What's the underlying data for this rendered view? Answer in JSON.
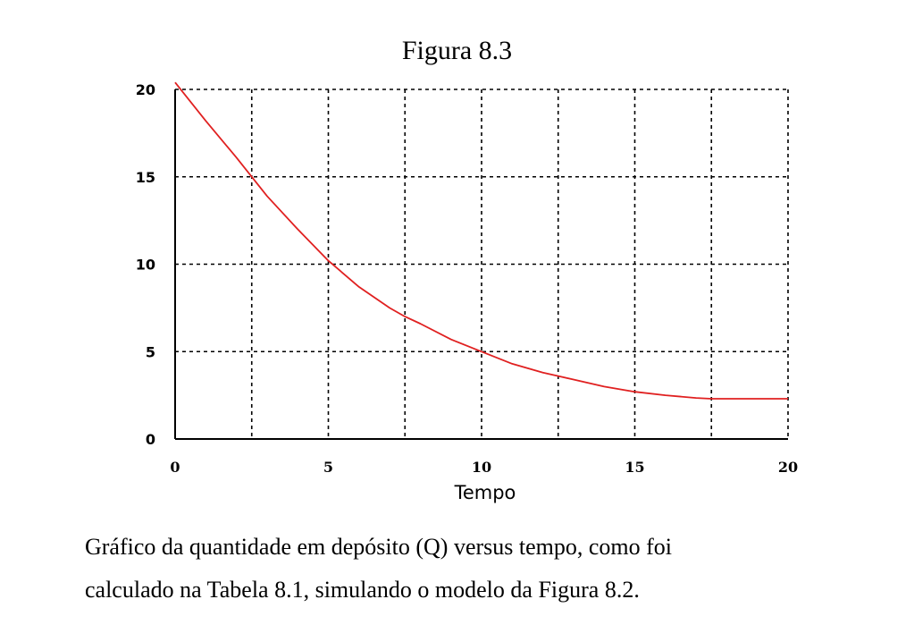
{
  "title": "Figura 8.3",
  "caption": {
    "line1": "Gráfico da quantidade em depósito (Q) versus tempo, como foi",
    "line2": "calculado na Tabela 8.1, simulando o modelo da Figura 8.2."
  },
  "chart_data": {
    "type": "line",
    "title": "Figura 8.3",
    "xlabel": "Tempo",
    "ylabel": "",
    "xlim": [
      0,
      20
    ],
    "ylim": [
      0,
      20
    ],
    "xticks": [
      0,
      5,
      10,
      15,
      20
    ],
    "yticks": [
      0,
      5,
      10,
      15,
      20
    ],
    "grid": true,
    "grid_style": "dashed",
    "colors": {
      "line": "#e02020",
      "grid": "#000000",
      "axis": "#000000"
    },
    "series": [
      {
        "x": [
          0,
          1,
          2,
          2.5,
          3,
          4,
          5,
          6,
          7,
          7.5,
          8,
          9,
          10,
          11,
          12,
          12.5,
          13,
          14,
          15,
          16,
          17,
          17.5,
          18,
          19,
          20
        ],
        "y": [
          20.4,
          18.2,
          16.1,
          15.0,
          13.9,
          12.0,
          10.2,
          8.7,
          7.5,
          7.0,
          6.6,
          5.7,
          5.0,
          4.3,
          3.8,
          3.6,
          3.4,
          3.0,
          2.7,
          2.5,
          2.35,
          2.3,
          2.3,
          2.3,
          2.3
        ]
      }
    ]
  }
}
